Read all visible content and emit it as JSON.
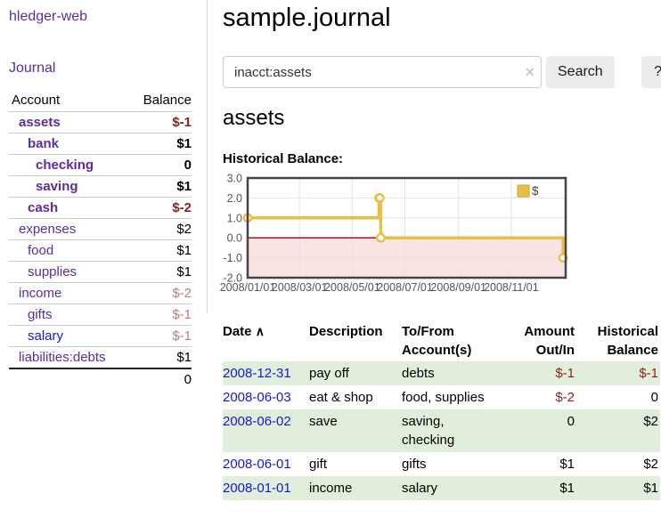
{
  "colors": {
    "link_purple": "#5a2ca0",
    "link_blue": "#1717d1",
    "negative_strong": "#8f2020",
    "negative_muted": "#bd7c7c",
    "row_green": "#e1eedc",
    "chart_gold": "#e9bf45",
    "chart_gold_border": "#c9a52c",
    "chart_negative_fill": "#fbdada",
    "chart_zero_line": "#a00000",
    "chart_grid": "#e3e3e3",
    "chart_border": "#454545",
    "chart_tick_text": "#545454"
  },
  "sidebar": {
    "app_title": "hledger-web",
    "journal_label": "Journal",
    "accounts": {
      "header_account": "Account",
      "header_balance": "Balance",
      "rows": [
        {
          "account": "assets",
          "balance": "$-1",
          "indent": 0,
          "bold": true,
          "neg": "strong",
          "link": "purple"
        },
        {
          "account": "bank",
          "balance": "$1",
          "indent": 1,
          "bold": true,
          "neg": "none",
          "link": "purple"
        },
        {
          "account": "checking",
          "balance": "0",
          "indent": 2,
          "bold": true,
          "neg": "none",
          "link": "purple"
        },
        {
          "account": "saving",
          "balance": "$1",
          "indent": 2,
          "bold": true,
          "neg": "none",
          "link": "purple"
        },
        {
          "account": "cash",
          "balance": "$-2",
          "indent": 1,
          "bold": true,
          "neg": "strong",
          "link": "purple"
        },
        {
          "account": "expenses",
          "balance": "$2",
          "indent": 0,
          "bold": false,
          "neg": "none",
          "link": "purple"
        },
        {
          "account": "food",
          "balance": "$1",
          "indent": 1,
          "bold": false,
          "neg": "none",
          "link": "purple"
        },
        {
          "account": "supplies",
          "balance": "$1",
          "indent": 1,
          "bold": false,
          "neg": "none",
          "link": "purple"
        },
        {
          "account": "income",
          "balance": "$-2",
          "indent": 0,
          "bold": false,
          "neg": "muted",
          "link": "purple"
        },
        {
          "account": "gifts",
          "balance": "$-1",
          "indent": 1,
          "bold": false,
          "neg": "muted",
          "link": "purple"
        },
        {
          "account": "salary",
          "balance": "$-1",
          "indent": 1,
          "bold": false,
          "neg": "muted",
          "link": "blue"
        },
        {
          "account": "liabilities:debts",
          "balance": "$1",
          "indent": 0,
          "bold": false,
          "neg": "none",
          "link": "purple"
        }
      ],
      "total": "0"
    }
  },
  "main": {
    "title": "sample.journal",
    "search": {
      "value": "inacct:assets",
      "clear_icon": "×",
      "search_label": "Search",
      "help_label": "?"
    },
    "account_heading": "assets",
    "section_label": "Historical Balance:"
  },
  "chart_data": {
    "type": "line",
    "step": true,
    "title": "Historical Balance:",
    "series": [
      {
        "name": "$",
        "points": [
          [
            "2008-01-01",
            1
          ],
          [
            "2008-06-01",
            2
          ],
          [
            "2008-06-02",
            2
          ],
          [
            "2008-06-03",
            0
          ],
          [
            "2008-12-31",
            -1
          ]
        ]
      }
    ],
    "x_ticks": [
      "2008/01/01",
      "2008/03/01",
      "2008/05/01",
      "2008/07/01",
      "2008/09/01",
      "2008/11/01"
    ],
    "y_ticks": [
      "3.0",
      "2.0",
      "1.0",
      "0.0",
      "-1.0",
      "-2.0"
    ],
    "ylim": [
      -2,
      3
    ],
    "x_domain_days": [
      0,
      368
    ],
    "grid": true,
    "legend": {
      "label": "$",
      "position": "top-right"
    },
    "negative_region_shaded": true
  },
  "register": {
    "headers": {
      "date": "Date",
      "sort_indicator": "∧",
      "description": "Description",
      "accounts": "To/From Account(s)",
      "amount": "Amount Out/In",
      "balance": "Historical Balance"
    },
    "rows": [
      {
        "date": "2008-12-31",
        "description": "pay off",
        "accounts": "debts",
        "amount": "$-1",
        "balance": "$-1",
        "amount_neg": true,
        "balance_neg": true,
        "shaded": true
      },
      {
        "date": "2008-06-03",
        "description": "eat & shop",
        "accounts": "food, supplies",
        "amount": "$-2",
        "balance": "0",
        "amount_neg": true,
        "balance_neg": false,
        "shaded": false
      },
      {
        "date": "2008-06-02",
        "description": "save",
        "accounts": "saving, checking",
        "amount": "0",
        "balance": "$2",
        "amount_neg": false,
        "balance_neg": false,
        "shaded": true
      },
      {
        "date": "2008-06-01",
        "description": "gift",
        "accounts": "gifts",
        "amount": "$1",
        "balance": "$2",
        "amount_neg": false,
        "balance_neg": false,
        "shaded": false
      },
      {
        "date": "2008-01-01",
        "description": "income",
        "accounts": "salary",
        "amount": "$1",
        "balance": "$1",
        "amount_neg": false,
        "balance_neg": false,
        "shaded": true
      }
    ]
  }
}
